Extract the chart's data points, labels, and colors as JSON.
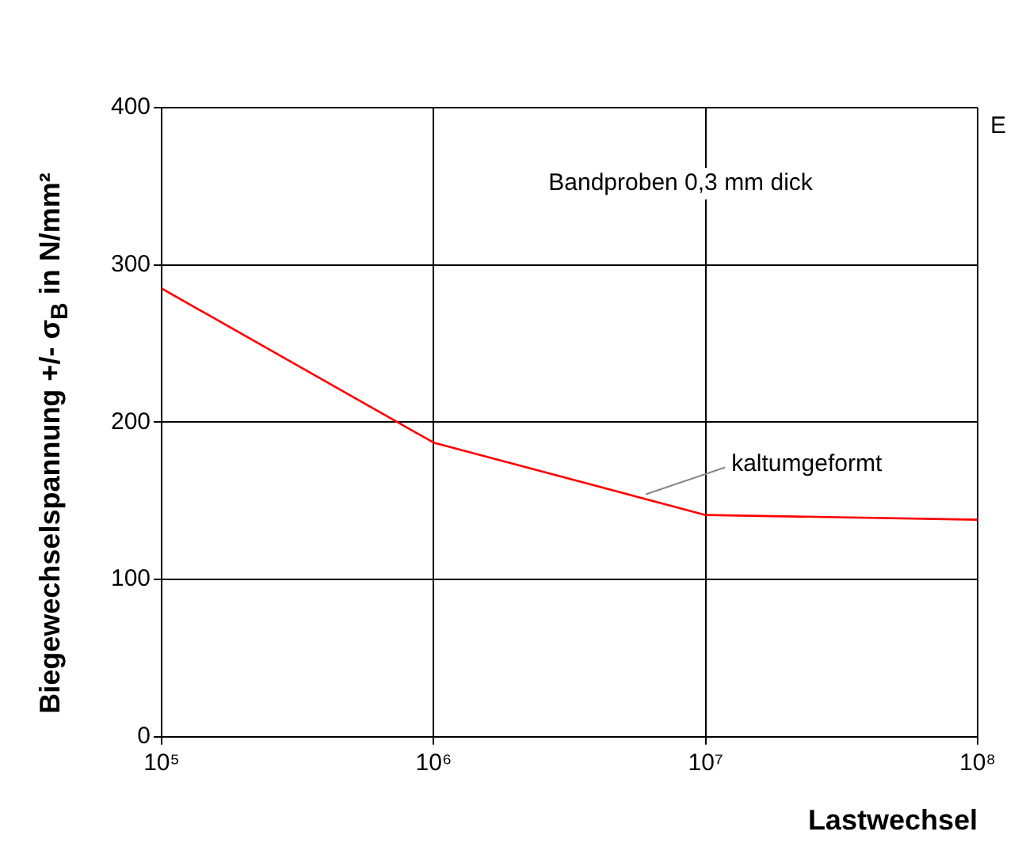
{
  "chart_data": {
    "type": "line",
    "xlabel": "Lastwechsel",
    "ylabel": "Biegewechselspannung +/- σ$_{B}$ in N/mm²",
    "annotations": [
      "Bandproben 0,3 mm dick",
      "E"
    ],
    "x": [
      100000,
      1000000,
      10000000,
      100000000
    ],
    "series": [
      {
        "name": "kaltumgeformt",
        "color": "#ff0000",
        "values": [
          285,
          187,
          141,
          138
        ]
      }
    ],
    "log": "x",
    "xlim": [
      100000,
      100000000
    ],
    "xticks": [
      {
        "value": 100000,
        "label": "10⁵"
      },
      {
        "value": 1000000,
        "label": "10⁶"
      },
      {
        "value": 10000000,
        "label": "10⁷"
      },
      {
        "value": 100000000,
        "label": "10⁸"
      }
    ],
    "ylim": [
      0,
      400
    ],
    "yticks": [
      0,
      100,
      200,
      300,
      400
    ],
    "grid": true,
    "legend": false,
    "marker": "none",
    "line_style": "solid"
  }
}
